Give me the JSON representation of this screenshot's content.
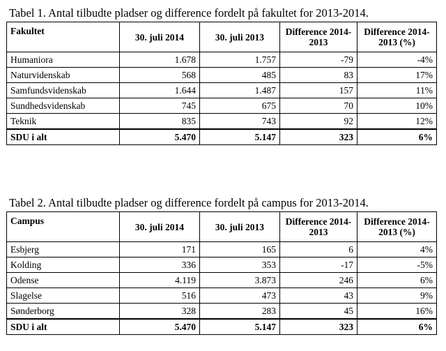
{
  "tables": [
    {
      "caption": "Tabel 1. Antal tilbudte pladser og difference fordelt på fakultet for 2013-2014.",
      "headers": [
        "Fakultet",
        "30. juli 2014",
        "30. juli 2013",
        "Difference 2014-2013",
        "Difference 2014-2013 (%)"
      ],
      "rows": [
        [
          "Humaniora",
          "1.678",
          "1.757",
          "-79",
          "-4%"
        ],
        [
          "Naturvidenskab",
          "568",
          "485",
          "83",
          "17%"
        ],
        [
          "Samfundsvidenskab",
          "1.644",
          "1.487",
          "157",
          "11%"
        ],
        [
          "Sundhedsvidenskab",
          "745",
          "675",
          "70",
          "10%"
        ],
        [
          "Teknik",
          "835",
          "743",
          "92",
          "12%"
        ]
      ],
      "total": [
        "SDU i alt",
        "5.470",
        "5.147",
        "323",
        "6%"
      ]
    },
    {
      "caption": "Tabel 2. Antal tilbudte pladser og difference fordelt på campus for 2013-2014.",
      "headers": [
        "Campus",
        "30. juli 2014",
        "30. juli 2013",
        "Difference 2014-2013",
        "Difference 2014-2013 (%)"
      ],
      "rows": [
        [
          "Esbjerg",
          "171",
          "165",
          "6",
          "4%"
        ],
        [
          "Kolding",
          "336",
          "353",
          "-17",
          "-5%"
        ],
        [
          "Odense",
          "4.119",
          "3.873",
          "246",
          "6%"
        ],
        [
          "Slagelse",
          "516",
          "473",
          "43",
          "9%"
        ],
        [
          "Sønderborg",
          "328",
          "283",
          "45",
          "16%"
        ]
      ],
      "total": [
        "SDU i alt",
        "5.470",
        "5.147",
        "323",
        "6%"
      ]
    }
  ]
}
